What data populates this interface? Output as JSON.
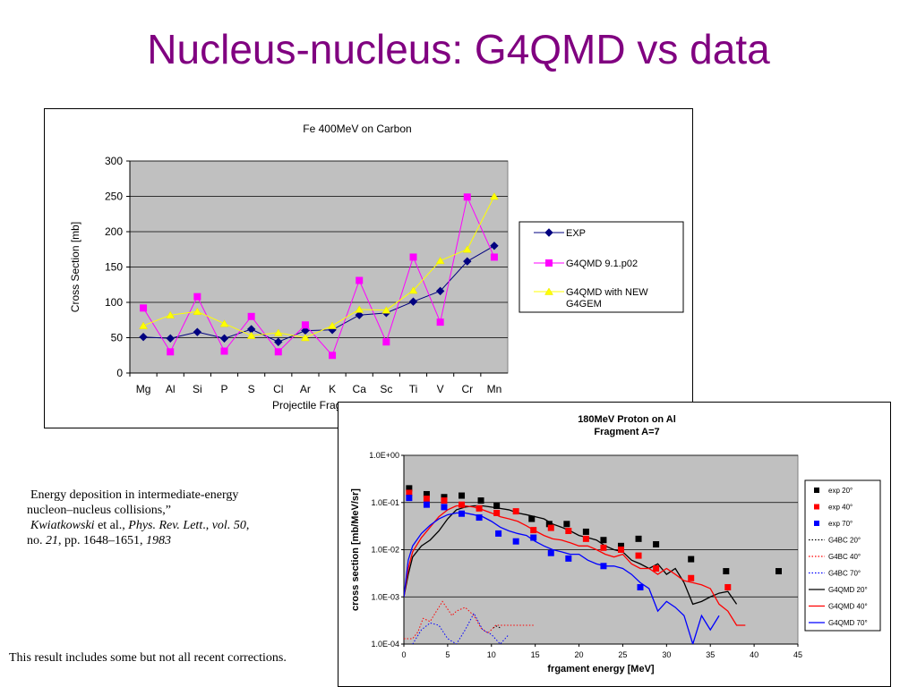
{
  "slide": {
    "title": "Nucleus-nucleus: G4QMD vs data",
    "citation": {
      "line1": "Energy deposition in intermediate-energy",
      "line2": "nucleon–nucleus collisions,”",
      "author": "Kwiatkowski",
      "et_al": " et al., ",
      "journal": "Phys. Rev. Lett",
      "sep1": "., ",
      "vol": "vol. 50",
      "sep2": ",",
      "no_prefix": "no. ",
      "no": "21",
      "pages": ", pp. 1648–1651, ",
      "year": "1983"
    },
    "note": "This result includes some but not all recent corrections."
  },
  "chart_data": [
    {
      "type": "line",
      "title": "Fe 400MeV on Carbon",
      "xlabel": "Projectile Fragment",
      "ylabel": "Cross Section [mb]",
      "categories": [
        "Mg",
        "Al",
        "Si",
        "P",
        "S",
        "Cl",
        "Ar",
        "K",
        "Ca",
        "Sc",
        "Ti",
        "V",
        "Cr",
        "Mn"
      ],
      "ylim": [
        0,
        300
      ],
      "yticks": [
        "0",
        "50",
        "100",
        "150",
        "200",
        "250",
        "300"
      ],
      "grid": true,
      "legend_position": "right",
      "series": [
        {
          "name": "EXP",
          "color": "#000080",
          "marker": "diamond",
          "values": [
            51,
            49,
            58,
            49,
            62,
            44,
            60,
            61,
            82,
            85,
            101,
            116,
            158,
            180
          ]
        },
        {
          "name": "G4QMD 9.1.p02",
          "color": "#ff00ff",
          "marker": "square",
          "values": [
            92,
            30,
            108,
            31,
            80,
            30,
            68,
            25,
            131,
            44,
            164,
            72,
            249,
            164
          ]
        },
        {
          "name": "G4QMD with NEW G4GEM",
          "color": "#ffff00",
          "marker": "triangle",
          "values": [
            67,
            82,
            87,
            70,
            53,
            57,
            50,
            67,
            90,
            89,
            117,
            159,
            175,
            250
          ]
        }
      ],
      "legend_lines": [
        [
          "EXP"
        ],
        [
          "G4QMD 9.1.p02"
        ],
        [
          "G4QMD with NEW",
          "G4GEM"
        ]
      ]
    },
    {
      "type": "line",
      "title_lines": [
        "180MeV Proton on Al",
        "Fragment A=7"
      ],
      "xlabel": "frgament energy [MeV]",
      "ylabel": "cross section [mb/MeV/sr]",
      "xlim": [
        0,
        45
      ],
      "xticks": [
        "0",
        "5",
        "10",
        "15",
        "20",
        "25",
        "30",
        "35",
        "40",
        "45"
      ],
      "ylim": [
        0.0001,
        1
      ],
      "log_y": true,
      "yticks": [
        "1.0E-04",
        "1.0E-03",
        "1.0E-02",
        "1.0E-01",
        "1.0E+00"
      ],
      "grid": true,
      "legend_position": "right",
      "series": [
        {
          "name": "exp 20°",
          "color": "#000000",
          "style": "marker",
          "x": [
            0.6,
            2.6,
            4.6,
            6.6,
            8.8,
            10.6,
            14.6,
            16.6,
            18.6,
            20.8,
            22.8,
            24.8,
            26.8,
            28.8,
            32.8,
            36.8,
            42.8
          ],
          "y": [
            0.2,
            0.15,
            0.13,
            0.14,
            0.11,
            0.085,
            0.045,
            0.035,
            0.035,
            0.024,
            0.016,
            0.012,
            0.017,
            0.013,
            0.0063,
            0.0035,
            0.0035
          ]
        },
        {
          "name": "exp 40°",
          "color": "#ff0000",
          "style": "marker",
          "x": [
            0.6,
            2.6,
            4.6,
            6.6,
            8.6,
            10.6,
            12.8,
            14.8,
            16.8,
            18.8,
            20.8,
            22.8,
            24.8,
            26.8,
            28.8,
            32.8,
            37.0
          ],
          "y": [
            0.16,
            0.12,
            0.11,
            0.09,
            0.075,
            0.06,
            0.065,
            0.026,
            0.029,
            0.025,
            0.017,
            0.011,
            0.01,
            0.0075,
            0.004,
            0.0025,
            0.0016
          ]
        },
        {
          "name": "exp 70°",
          "color": "#0000ff",
          "style": "marker",
          "x": [
            0.6,
            2.6,
            4.6,
            6.6,
            8.6,
            10.8,
            12.8,
            14.8,
            16.8,
            18.8,
            22.8,
            27.0
          ],
          "y": [
            0.125,
            0.09,
            0.08,
            0.058,
            0.048,
            0.022,
            0.015,
            0.018,
            0.0085,
            0.0065,
            0.0045,
            0.0016
          ]
        },
        {
          "name": "G4BC 20°",
          "color": "#000000",
          "style": "dotted",
          "x": [
            10.2,
            10.6,
            11.0
          ],
          "y": [
            0.00022,
            0.00024,
            0.00022
          ]
        },
        {
          "name": "G4BC 40°",
          "color": "#ff0000",
          "style": "dotted",
          "x": [
            0,
            1,
            1.6,
            2.2,
            3,
            3.4,
            4,
            4.4,
            5,
            5.5,
            6,
            7,
            8,
            8.8,
            9.6,
            10.5,
            14.4,
            14.8
          ],
          "y": [
            0.00013,
            0.00013,
            0.00018,
            0.00035,
            0.0003,
            0.0004,
            0.0006,
            0.0008,
            0.00055,
            0.0004,
            0.0005,
            0.0006,
            0.0004,
            0.00022,
            0.00017,
            0.00025,
            0.00025,
            0.00025
          ]
        },
        {
          "name": "G4BC 70°",
          "color": "#0000ff",
          "style": "dotted",
          "x": [
            1,
            2,
            3,
            4,
            5,
            6,
            7,
            8,
            9,
            10,
            11,
            12
          ],
          "y": [
            0.0001,
            0.0002,
            0.00028,
            0.00025,
            0.00013,
            0.0001,
            0.0002,
            0.00045,
            0.0002,
            0.00016,
            0.0001,
            0.00016
          ]
        },
        {
          "name": "G4QMD 20°",
          "color": "#000000",
          "style": "solid",
          "x": [
            0,
            0.5,
            1,
            2,
            3,
            4,
            5,
            6,
            7,
            8,
            9,
            10,
            11,
            12,
            13,
            14,
            15,
            16,
            17,
            18,
            19,
            20,
            21,
            22,
            23,
            24,
            25,
            26,
            27,
            28,
            29,
            30,
            31,
            32,
            33,
            34,
            35,
            36,
            37,
            38
          ],
          "y": [
            0.001,
            0.003,
            0.007,
            0.012,
            0.016,
            0.025,
            0.045,
            0.07,
            0.08,
            0.085,
            0.085,
            0.08,
            0.075,
            0.07,
            0.06,
            0.055,
            0.05,
            0.045,
            0.035,
            0.03,
            0.025,
            0.02,
            0.018,
            0.016,
            0.012,
            0.01,
            0.009,
            0.006,
            0.005,
            0.004,
            0.005,
            0.003,
            0.004,
            0.002,
            0.0007,
            0.0008,
            0.001,
            0.0012,
            0.0013,
            0.0007
          ]
        },
        {
          "name": "G4QMD 40°",
          "color": "#ff0000",
          "style": "solid",
          "x": [
            0,
            0.5,
            1,
            2,
            3,
            4,
            5,
            6,
            7,
            8,
            9,
            10,
            11,
            12,
            13,
            14,
            15,
            16,
            17,
            18,
            19,
            20,
            21,
            22,
            23,
            24,
            25,
            26,
            27,
            28,
            29,
            30,
            31,
            32,
            33,
            34,
            35,
            36,
            37,
            38,
            39
          ],
          "y": [
            0.001,
            0.004,
            0.009,
            0.018,
            0.03,
            0.05,
            0.07,
            0.085,
            0.085,
            0.08,
            0.07,
            0.06,
            0.05,
            0.045,
            0.04,
            0.032,
            0.025,
            0.02,
            0.017,
            0.016,
            0.014,
            0.012,
            0.012,
            0.01,
            0.008,
            0.007,
            0.008,
            0.005,
            0.004,
            0.004,
            0.003,
            0.004,
            0.003,
            0.0022,
            0.002,
            0.0018,
            0.0015,
            0.0007,
            0.0005,
            0.00025,
            0.00025
          ]
        },
        {
          "name": "G4QMD 70°",
          "color": "#0000ff",
          "style": "solid",
          "x": [
            0,
            0.5,
            1,
            2,
            3,
            4,
            5,
            6,
            7,
            8,
            9,
            10,
            11,
            12,
            13,
            14,
            15,
            16,
            17,
            18,
            19,
            20,
            21,
            22,
            23,
            24,
            25,
            26,
            27,
            28,
            29,
            30,
            31,
            32,
            33,
            34,
            35,
            36
          ],
          "y": [
            0.001,
            0.006,
            0.012,
            0.022,
            0.033,
            0.045,
            0.055,
            0.06,
            0.06,
            0.055,
            0.05,
            0.04,
            0.03,
            0.025,
            0.022,
            0.02,
            0.015,
            0.012,
            0.01,
            0.009,
            0.008,
            0.008,
            0.006,
            0.005,
            0.0045,
            0.0045,
            0.004,
            0.003,
            0.002,
            0.0015,
            0.0005,
            0.0008,
            0.0006,
            0.0004,
            0.0001,
            0.0004,
            0.0002,
            0.0004
          ]
        }
      ],
      "legend_items": [
        "exp 20°",
        "exp 40°",
        "exp 70°",
        "G4BC 20°",
        "G4BC 40°",
        "G4BC 70°",
        "G4QMD 20°",
        "G4QMD 40°",
        "G4QMD 70°"
      ]
    }
  ]
}
